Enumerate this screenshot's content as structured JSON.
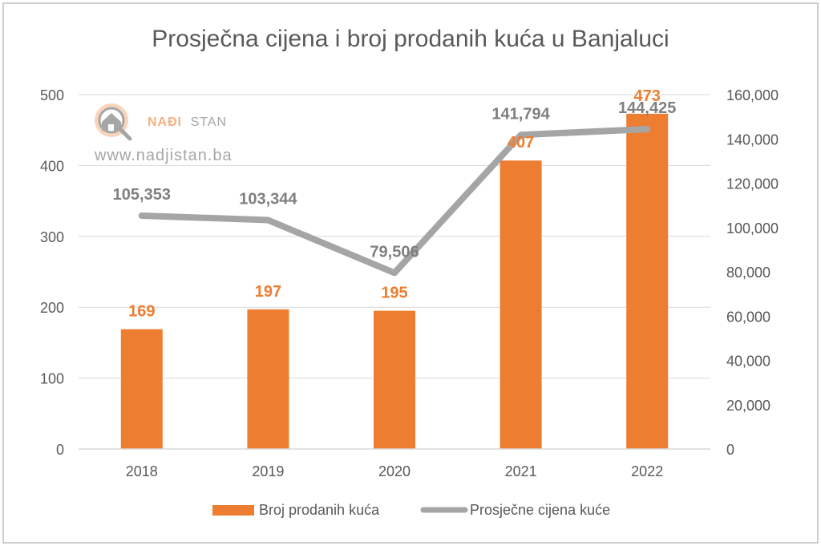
{
  "chart_data": {
    "type": "bar",
    "title": "Prosječna cijena i broj prodanih kuća u Banjaluci",
    "categories": [
      "2018",
      "2019",
      "2020",
      "2021",
      "2022"
    ],
    "series": [
      {
        "name": "Broj prodanih kuća",
        "type": "bar",
        "axis": "left",
        "color": "#ED7D31",
        "values": [
          169,
          197,
          195,
          407,
          473
        ],
        "labels": [
          "169",
          "197",
          "195",
          "407",
          "473"
        ]
      },
      {
        "name": "Prosječne cijena kuće",
        "type": "line",
        "axis": "right",
        "color": "#A5A5A5",
        "values": [
          105353,
          103344,
          79506,
          141794,
          144425
        ],
        "labels": [
          "105,353",
          "103,344",
          "79,506",
          "141,794",
          "144,425"
        ]
      }
    ],
    "ylim_left": [
      0,
      500
    ],
    "yticks_left": [
      "0",
      "100",
      "200",
      "300",
      "400",
      "500"
    ],
    "ylim_right": [
      0,
      160000
    ],
    "yticks_right": [
      "0",
      "20,000",
      "40,000",
      "60,000",
      "80,000",
      "100,000",
      "120,000",
      "140,000",
      "160,000"
    ],
    "grid": true,
    "legend_position": "bottom"
  },
  "watermark": {
    "brand_part1": "NAĐI",
    "brand_part2": "STAN",
    "url": "www.nadjistan.ba",
    "icon": "house-magnifier-icon"
  },
  "colors": {
    "bar": "#ED7D31",
    "line": "#A5A5A5",
    "grid": "#D9D9D9",
    "text": "#595959",
    "frame": "#BFBFBF"
  }
}
